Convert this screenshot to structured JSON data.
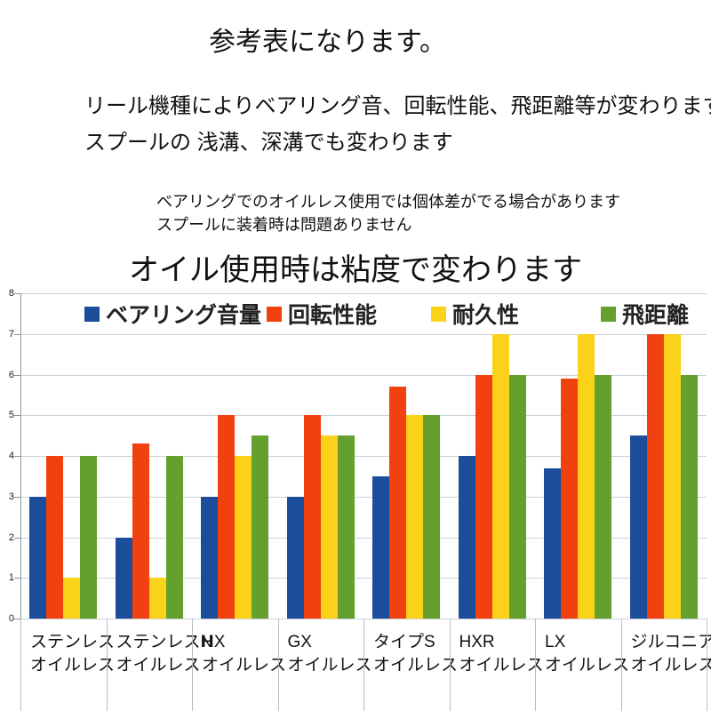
{
  "texts": {
    "title": "参考表になります。",
    "line1": "リール機種によりベアリング音、回転性能、飛距離等が変わります。",
    "line2": "スプールの 浅溝、深溝でも変わります",
    "note1": "ベアリングでのオイルレス使用では個体差がでる場合があります",
    "note2": "スプールに装着時は問題ありません",
    "subtitle": "オイル使用時は粘度で変わります"
  },
  "chart_data": {
    "type": "bar",
    "title": "",
    "xlabel": "",
    "ylabel": "",
    "ylim": [
      0,
      8
    ],
    "yticks": [
      0,
      1,
      2,
      3,
      4,
      5,
      6,
      7,
      8
    ],
    "grid": true,
    "legend_position": "top",
    "categories": [
      {
        "line1": "ステンレス",
        "line2": "オイルレス"
      },
      {
        "line1": "ステンレスN",
        "line2": "オイルレス"
      },
      {
        "line1": "HX",
        "line2": "オイルレス"
      },
      {
        "line1": "GX",
        "line2": "オイルレス"
      },
      {
        "line1": "タイプS",
        "line2": "オイルレス"
      },
      {
        "line1": "HXR",
        "line2": "オイルレス"
      },
      {
        "line1": "LX",
        "line2": "オイルレス"
      },
      {
        "line1": "ジルコニア",
        "line2": "オイルレス"
      }
    ],
    "series": [
      {
        "name": "ベアリング音量",
        "color": "#1b4d9a",
        "values": [
          3,
          2,
          3,
          3,
          3.5,
          4,
          3.7,
          4.5
        ]
      },
      {
        "name": "回転性能",
        "color": "#f1410f",
        "values": [
          4,
          4.3,
          5,
          5,
          5.7,
          6,
          5.9,
          7
        ]
      },
      {
        "name": "耐久性",
        "color": "#fbd21a",
        "values": [
          1,
          1,
          4,
          4.5,
          5,
          7,
          7,
          7
        ]
      },
      {
        "name": "飛距離",
        "color": "#63a02d",
        "values": [
          4,
          4,
          4.5,
          4.5,
          5,
          6,
          6,
          6
        ]
      }
    ],
    "colors": {
      "grid": "#ccd2d9",
      "axis": "#8f959c",
      "separator": "#b8bdc3",
      "legend_bg": "#ffffff",
      "text": "#1a1a1a"
    }
  }
}
